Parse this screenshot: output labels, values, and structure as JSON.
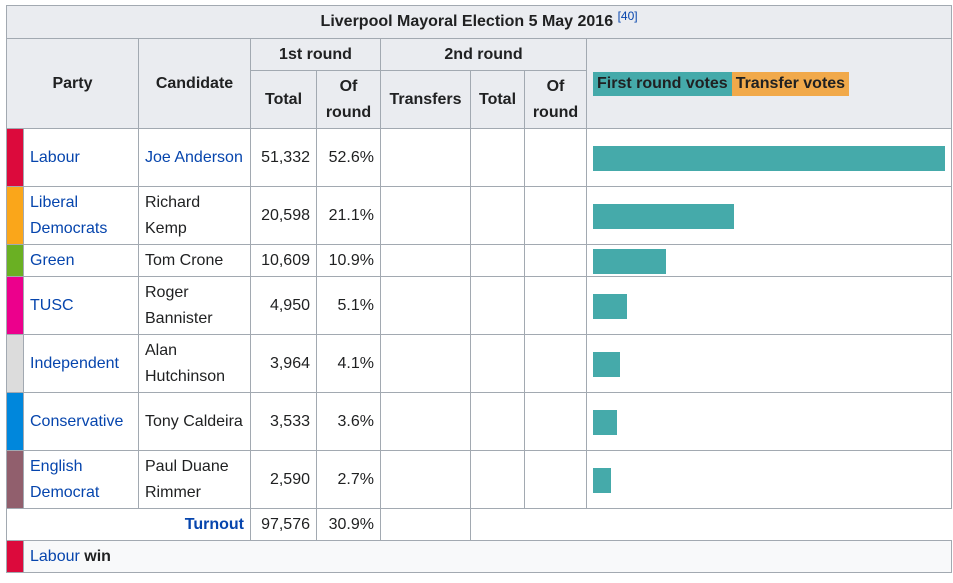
{
  "caption": {
    "title": "Liverpool Mayoral Election 5 May 2016",
    "ref": "[40]"
  },
  "headers": {
    "party": "Party",
    "candidate": "Candidate",
    "round1": "1st round",
    "round2": "2nd round",
    "total": "Total",
    "of_round": "Of round",
    "transfers": "Transfers",
    "total2": "Total",
    "of_round2": "Of round"
  },
  "legend": {
    "first": {
      "label": "First round votes",
      "color": "#45aaaa"
    },
    "transfer": {
      "label": "Transfer votes",
      "color": "#f1a94a"
    }
  },
  "rows": [
    {
      "party": "Labour",
      "candidate": "Joe Anderson",
      "candidate_link": true,
      "total": "51,332",
      "pct": "52.6%",
      "share": 52.6,
      "color": "#dc0a3c"
    },
    {
      "party": "Liberal Democrats",
      "candidate": "Richard Kemp",
      "candidate_link": false,
      "total": "20,598",
      "pct": "21.1%",
      "share": 21.1,
      "color": "#faa61a"
    },
    {
      "party": "Green",
      "candidate": "Tom Crone",
      "candidate_link": false,
      "total": "10,609",
      "pct": "10.9%",
      "share": 10.9,
      "color": "#6ab023"
    },
    {
      "party": "TUSC",
      "candidate": "Roger Bannister",
      "candidate_link": false,
      "total": "4,950",
      "pct": "5.1%",
      "share": 5.1,
      "color": "#ec008c"
    },
    {
      "party": "Independent",
      "candidate": "Alan Hutchinson",
      "candidate_link": false,
      "total": "3,964",
      "pct": "4.1%",
      "share": 4.1,
      "color": "#dcdcdc"
    },
    {
      "party": "Conservative",
      "candidate": "Tony Caldeira",
      "candidate_link": false,
      "total": "3,533",
      "pct": "3.6%",
      "share": 3.6,
      "color": "#0087dc"
    },
    {
      "party": "English Democrat",
      "candidate": "Paul Duane Rimmer",
      "candidate_link": false,
      "total": "2,590",
      "pct": "2.7%",
      "share": 2.7,
      "color": "#915f6d"
    }
  ],
  "turnout": {
    "label": "Turnout",
    "total": "97,576",
    "pct": "30.9%"
  },
  "result": {
    "party": "Labour",
    "word": "win",
    "color": "#dc0a3c"
  }
}
